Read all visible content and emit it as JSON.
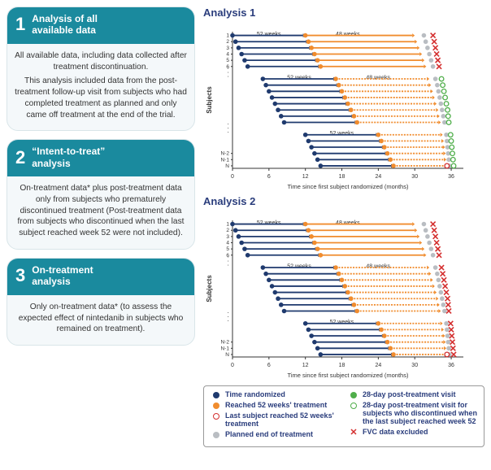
{
  "colors": {
    "teal": "#1a8a9e",
    "navy": "#1f3a6e",
    "orange": "#f08c2e",
    "grey": "#b9bdc2",
    "green": "#4fae4a",
    "red": "#d42f2f",
    "axis": "#333333",
    "panel_bg": "#f4f8fa"
  },
  "cards": [
    {
      "num": "1",
      "title": "Analysis of all\navailable data",
      "paras": [
        "All available data, including data collected after treatment discontinuation.",
        "This analysis included data from the post-treatment follow-up visit from subjects who had completed treatment as planned and only came off treatment at the end of the trial."
      ]
    },
    {
      "num": "2",
      "title": "“Intent-to-treat”\nanalysis",
      "paras": [
        "On-treatment data* plus post-treatment data only from subjects who prematurely discontinued treatment (Post-treatment data from subjects who discontinued when the last subject reached week 52 were not included)."
      ]
    },
    {
      "num": "3",
      "title": "On-treatment\nanalysis",
      "paras": [
        "Only on-treatment data* (to assess the expected effect of nintedanib in subjects who remained on treatment)."
      ]
    }
  ],
  "charts": [
    {
      "title": "Analysis 1",
      "post_style": "open_green",
      "show_excluded": false
    },
    {
      "title": "Analysis 2",
      "post_style": "mixed",
      "show_excluded": true
    }
  ],
  "chart_common": {
    "xlabel": "Time since first subject randomized (months)",
    "ylabel": "Subjects",
    "xlim": [
      0,
      38
    ],
    "xticks": [
      0,
      6,
      12,
      18,
      24,
      30,
      36
    ],
    "row_labels": [
      "1",
      "2",
      "3",
      "4",
      "5",
      "6",
      "",
      "",
      "",
      "",
      "",
      "",
      "",
      "",
      "",
      "",
      "",
      "",
      "",
      "N-2",
      "N-1",
      "N"
    ],
    "week_labels": [
      {
        "text": "52 weeks",
        "x": 4,
        "row": 0.3
      },
      {
        "text": "48 weeks",
        "x": 17,
        "row": 0.3
      },
      {
        "text": "52 weeks",
        "x": 9,
        "row": 7.3
      },
      {
        "text": "48 weeks",
        "x": 22,
        "row": 7.3
      },
      {
        "text": "52 weeks",
        "x": 16,
        "row": 16.3
      }
    ],
    "rows": [
      {
        "start": 0,
        "t52": 12,
        "end": 30,
        "planned": 31.5,
        "post": 33,
        "group": 0
      },
      {
        "start": 0.5,
        "t52": 12.5,
        "end": 30.4,
        "planned": 31.8,
        "post": 33.2,
        "group": 0
      },
      {
        "start": 1,
        "t52": 13,
        "end": 30.8,
        "planned": 32.1,
        "post": 33.4,
        "group": 0
      },
      {
        "start": 1.5,
        "t52": 13.5,
        "end": 31.2,
        "planned": 32.4,
        "post": 33.6,
        "group": 0
      },
      {
        "start": 2,
        "t52": 14,
        "end": 31.6,
        "planned": 32.7,
        "post": 33.8,
        "group": 0
      },
      {
        "start": 2.5,
        "t52": 14.5,
        "end": 31.9,
        "planned": 33,
        "post": 34,
        "group": 0
      },
      {
        "dots": true
      },
      {
        "start": 5,
        "t52": 17,
        "end": 32.4,
        "planned": 33.4,
        "post": 34.4,
        "group": 1
      },
      {
        "start": 5.5,
        "t52": 17.5,
        "end": 32.7,
        "planned": 33.7,
        "post": 34.6,
        "group": 1
      },
      {
        "start": 6,
        "t52": 18,
        "end": 33,
        "planned": 33.9,
        "post": 34.8,
        "group": 1
      },
      {
        "start": 6.5,
        "t52": 18.5,
        "end": 33.3,
        "planned": 34.1,
        "post": 35,
        "group": 1
      },
      {
        "start": 7,
        "t52": 19,
        "end": 33.6,
        "planned": 34.3,
        "post": 35.2,
        "group": 1
      },
      {
        "start": 7.5,
        "t52": 19.5,
        "end": 33.9,
        "planned": 34.5,
        "post": 35.4,
        "group": 1
      },
      {
        "start": 8,
        "t52": 20,
        "end": 34.1,
        "planned": 34.7,
        "post": 35.5,
        "group": 1
      },
      {
        "start": 8.5,
        "t52": 20.5,
        "end": 34.3,
        "planned": 34.9,
        "post": 35.6,
        "group": 1
      },
      {
        "dots": true
      },
      {
        "start": 12,
        "t52": 24,
        "end": 34.6,
        "planned": 35.2,
        "post": 35.9,
        "group": 2
      },
      {
        "start": 12.5,
        "t52": 24.5,
        "end": 34.8,
        "planned": 35.3,
        "post": 36,
        "group": 2
      },
      {
        "start": 13,
        "t52": 25,
        "end": 35,
        "planned": 35.4,
        "post": 36.1,
        "group": 2
      },
      {
        "start": 13.5,
        "t52": 25.5,
        "end": 35.1,
        "planned": 35.5,
        "post": 36.2,
        "group": 2
      },
      {
        "start": 14,
        "t52": 26,
        "end": 35.2,
        "planned": 35.6,
        "post": 36.3,
        "group": 2
      },
      {
        "start": 14.5,
        "t52": 26.5,
        "end": 35.3,
        "planned": 35.7,
        "post": 36.4,
        "group": 2,
        "last": true
      }
    ],
    "arrow_w": 1.8,
    "dot_r": 2.8
  },
  "legend": {
    "col1": [
      {
        "type": "dot",
        "color_key": "navy",
        "text": "Time randomized"
      },
      {
        "type": "dot",
        "color_key": "orange",
        "text": "Reached 52 weeks' treatment"
      },
      {
        "type": "ring",
        "color_key": "red",
        "text": "Last subject reached 52 weeks' treatment"
      },
      {
        "type": "dot",
        "color_key": "grey",
        "text": "Planned end of treatment"
      }
    ],
    "col2": [
      {
        "type": "dot",
        "color_key": "green",
        "text": "28-day post-treatment visit"
      },
      {
        "type": "ring",
        "color_key": "green",
        "text": "28-day post-treatment visit for subjects who discontinued when the last subject reached week 52"
      },
      {
        "type": "cross",
        "color_key": "red",
        "text": "FVC data excluded"
      }
    ]
  }
}
